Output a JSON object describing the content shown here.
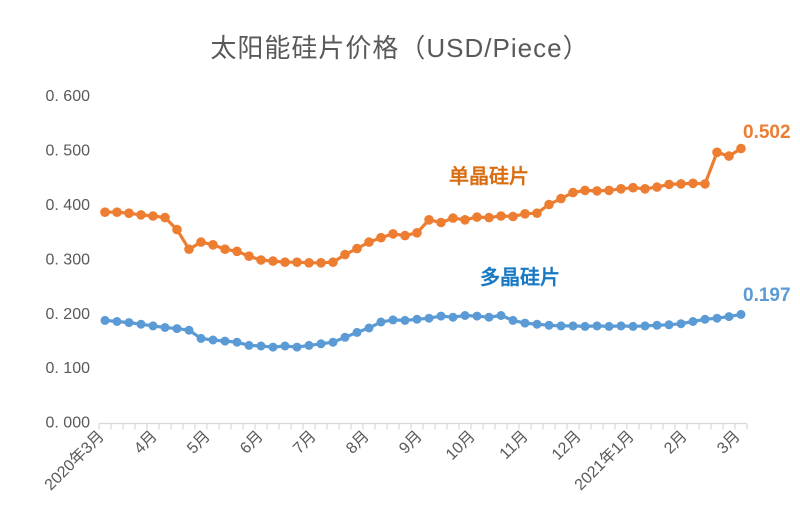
{
  "title": "太阳能硅片价格（USD/Piece）",
  "chart_data": {
    "type": "line",
    "title": "太阳能硅片价格（USD/Piece）",
    "xlabel": "",
    "ylabel": "",
    "ylim": [
      0.0,
      0.6
    ],
    "grid": false,
    "legend_position": "inline-annotations",
    "x_unit": "weekly points from 2020年3月 to 2021年3月",
    "x_tick_labels": [
      "2020年3月",
      "4月",
      "5月",
      "6月",
      "7月",
      "8月",
      "9月",
      "10月",
      "11月",
      "12月",
      "2021年1月",
      "2月",
      "3月"
    ],
    "y_tick_values": [
      0.0,
      0.1,
      0.2,
      0.3,
      0.4,
      0.5,
      0.6
    ],
    "y_tick_labels": [
      "0. 000",
      "0. 100",
      "0. 200",
      "0. 300",
      "0. 400",
      "0. 500",
      "0. 600"
    ],
    "axis_color": "#d9d9d9",
    "text_color": "#595959",
    "series": [
      {
        "name": "单晶硅片",
        "color": "#ed7d31",
        "label_color": "#d96d12",
        "end_label": "0.502",
        "values": [
          0.385,
          0.385,
          0.383,
          0.38,
          0.378,
          0.375,
          0.353,
          0.317,
          0.33,
          0.325,
          0.317,
          0.313,
          0.304,
          0.297,
          0.295,
          0.293,
          0.293,
          0.292,
          0.292,
          0.293,
          0.307,
          0.318,
          0.33,
          0.338,
          0.345,
          0.342,
          0.347,
          0.371,
          0.366,
          0.374,
          0.371,
          0.376,
          0.375,
          0.378,
          0.377,
          0.382,
          0.383,
          0.399,
          0.41,
          0.421,
          0.425,
          0.424,
          0.425,
          0.428,
          0.43,
          0.428,
          0.431,
          0.436,
          0.437,
          0.438,
          0.437,
          0.495,
          0.488,
          0.502
        ]
      },
      {
        "name": "多晶硅片",
        "color": "#5b9bd5",
        "label_color": "#1778c4",
        "end_label": "0.197",
        "values": [
          0.186,
          0.184,
          0.182,
          0.179,
          0.176,
          0.173,
          0.171,
          0.168,
          0.153,
          0.15,
          0.148,
          0.146,
          0.14,
          0.139,
          0.137,
          0.139,
          0.137,
          0.14,
          0.143,
          0.146,
          0.155,
          0.164,
          0.172,
          0.183,
          0.187,
          0.186,
          0.188,
          0.19,
          0.194,
          0.192,
          0.195,
          0.194,
          0.192,
          0.195,
          0.186,
          0.181,
          0.179,
          0.177,
          0.176,
          0.176,
          0.175,
          0.176,
          0.175,
          0.176,
          0.175,
          0.176,
          0.177,
          0.178,
          0.18,
          0.184,
          0.188,
          0.19,
          0.193,
          0.197
        ]
      }
    ]
  }
}
